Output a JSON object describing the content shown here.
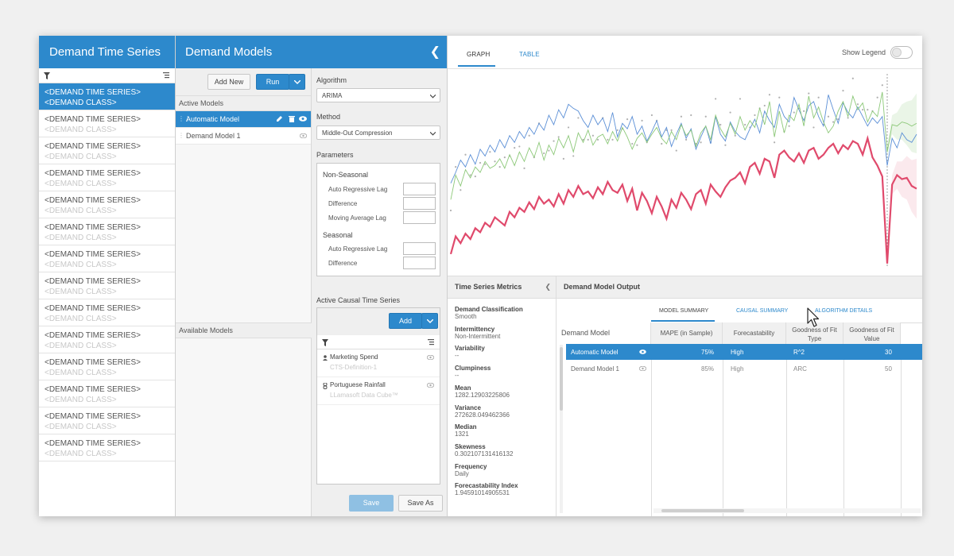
{
  "colors": {
    "accent": "#2d89cc",
    "series_red": "#e04a6c",
    "series_green": "#8cc878",
    "series_blue": "#5b8fd6",
    "dots": "#b0b0b0"
  },
  "time_series_panel": {
    "title": "Demand Time Series",
    "filter_icon": "filter-icon",
    "list_icon": "list-icon",
    "items": [
      {
        "name": "<DEMAND TIME SERIES>",
        "class": "<DEMAND CLASS>",
        "selected": true
      },
      {
        "name": "<DEMAND TIME SERIES>",
        "class": "<DEMAND CLASS>"
      },
      {
        "name": "<DEMAND TIME SERIES>",
        "class": "<DEMAND CLASS>"
      },
      {
        "name": "<DEMAND TIME SERIES>",
        "class": "<DEMAND CLASS>"
      },
      {
        "name": "<DEMAND TIME SERIES>",
        "class": "<DEMAND CLASS>"
      },
      {
        "name": "<DEMAND TIME SERIES>",
        "class": "<DEMAND CLASS>"
      },
      {
        "name": "<DEMAND TIME SERIES>",
        "class": "<DEMAND CLASS>"
      },
      {
        "name": "<DEMAND TIME SERIES>",
        "class": "<DEMAND CLASS>"
      },
      {
        "name": "<DEMAND TIME SERIES>",
        "class": "<DEMAND CLASS>"
      },
      {
        "name": "<DEMAND TIME SERIES>",
        "class": "<DEMAND CLASS>"
      },
      {
        "name": "<DEMAND TIME SERIES>",
        "class": "<DEMAND CLASS>"
      },
      {
        "name": "<DEMAND TIME SERIES>",
        "class": "<DEMAND CLASS>"
      },
      {
        "name": "<DEMAND TIME SERIES>",
        "class": "<DEMAND CLASS>"
      },
      {
        "name": "<DEMAND TIME SERIES>",
        "class": "<DEMAND CLASS>"
      }
    ]
  },
  "models_panel": {
    "title": "Demand Models",
    "add_new": "Add New",
    "run": "Run",
    "active_models_label": "Active Models",
    "active_models": [
      {
        "name": "Automatic Model",
        "selected": true
      },
      {
        "name": "Demand Model 1"
      }
    ],
    "available_models_label": "Available Models"
  },
  "parameters_panel": {
    "algorithm_label": "Algorithm",
    "algorithm_value": "ARIMA",
    "method_label": "Method",
    "method_value": "Middle-Out Compression",
    "parameters_label": "Parameters",
    "non_seasonal_label": "Non-Seasonal",
    "non_seasonal": [
      "Auto Regressive Lag",
      "Difference",
      "Moving Average Lag"
    ],
    "seasonal_label": "Seasonal",
    "seasonal": [
      "Auto Regressive Lag",
      "Difference"
    ],
    "causal_label": "Active Causal Time Series",
    "causal_add": "Add",
    "causal_items": [
      {
        "name": "Marketing Spend",
        "source": "CTS-Definition-1"
      },
      {
        "name": "Portuguese Rainfall",
        "source": "LLamasoft Data Cube™"
      }
    ],
    "save": "Save",
    "save_as": "Save As"
  },
  "graph_panel": {
    "tabs": [
      "GRAPH",
      "TABLE"
    ],
    "show_legend": "Show Legend"
  },
  "chart_data": {
    "type": "line",
    "x": [
      0,
      1,
      2,
      3,
      4,
      5,
      6,
      7,
      8,
      9,
      10,
      11,
      12,
      13,
      14,
      15,
      16,
      17,
      18,
      19,
      20,
      21,
      22,
      23,
      24,
      25,
      26,
      27,
      28,
      29,
      30,
      31,
      32,
      33,
      34,
      35,
      36,
      37,
      38,
      39,
      40,
      41,
      42,
      43,
      44,
      45,
      46,
      47,
      48,
      49,
      50,
      51,
      52,
      53,
      54,
      55,
      56,
      57,
      58,
      59,
      60,
      61,
      62,
      63,
      64,
      65,
      66,
      67,
      68,
      69,
      70,
      71,
      72,
      73,
      74,
      75,
      76,
      77,
      78,
      79,
      80,
      81,
      82,
      83,
      84,
      85,
      86,
      87,
      88,
      89,
      90,
      91,
      92,
      93,
      94,
      95
    ],
    "series": [
      {
        "values": [
          10,
          23,
          18,
          25,
          21,
          29,
          26,
          33,
          30,
          37,
          34,
          31,
          41,
          37,
          44,
          41,
          48,
          43,
          52,
          47,
          50,
          45,
          54,
          47,
          57,
          52,
          60,
          54,
          56,
          51,
          59,
          54,
          63,
          57,
          55,
          61,
          49,
          58,
          42,
          55,
          49,
          40,
          52,
          45,
          36,
          50,
          44,
          55,
          50,
          43,
          54,
          57,
          47,
          61,
          56,
          52,
          59,
          64,
          66,
          70,
          62,
          74,
          77,
          69,
          80,
          78,
          66,
          83,
          86,
          81,
          78,
          84,
          77,
          86,
          88,
          80,
          83,
          88,
          91,
          84,
          90,
          87,
          93,
          91,
          83,
          95,
          81,
          75,
          67,
          3,
          61,
          68,
          65,
          66,
          60,
          58
        ]
      },
      {
        "values": [
          50,
          68,
          60,
          72,
          66,
          74,
          70,
          78,
          73,
          75,
          80,
          73,
          83,
          75,
          85,
          78,
          88,
          81,
          92,
          79,
          90,
          83,
          95,
          88,
          97,
          85,
          99,
          92,
          101,
          90,
          96,
          98,
          91,
          100,
          93,
          103,
          96,
          87,
          95,
          99,
          92,
          98,
          103,
          95,
          91,
          100,
          94,
          105,
          97,
          101,
          89,
          99,
          104,
          94,
          112,
          102,
          96,
          106,
          98,
          111,
          101,
          108,
          103,
          117,
          105,
          122,
          96,
          115,
          99,
          112,
          108,
          120,
          104,
          126,
          110,
          118,
          107,
          99,
          104,
          115,
          122,
          111,
          126,
          116,
          121,
          107,
          115,
          111,
          129,
          85,
          105,
          104,
          107,
          106,
          104,
          106
        ]
      },
      {
        "values": [
          62,
          70,
          79,
          74,
          83,
          76,
          87,
          82,
          90,
          85,
          94,
          88,
          97,
          92,
          100,
          95,
          103,
          98,
          106,
          101,
          112,
          105,
          116,
          110,
          120,
          117,
          115,
          108,
          103,
          112,
          105,
          110,
          100,
          114,
          96,
          106,
          102,
          111,
          98,
          104,
          93,
          100,
          108,
          96,
          103,
          89,
          98,
          106,
          95,
          102,
          87,
          96,
          104,
          91,
          111,
          98,
          93,
          107,
          100,
          96,
          94,
          102,
          109,
          99,
          115,
          108,
          103,
          120,
          111,
          107,
          125,
          116,
          108,
          119,
          122,
          111,
          104,
          127,
          116,
          106,
          121,
          114,
          110,
          118,
          111,
          104,
          110,
          106,
          111,
          75,
          95,
          88,
          99,
          94,
          92,
          98
        ]
      }
    ],
    "grid": false,
    "legend": "hidden"
  },
  "output_panel": {
    "metrics_title": "Time Series Metrics",
    "metrics": [
      {
        "k": "Demand Classification",
        "v": "Smooth"
      },
      {
        "k": "Intermittency",
        "v": "Non-Intermittent"
      },
      {
        "k": "Variability",
        "v": "--"
      },
      {
        "k": "Clumpiness",
        "v": "--"
      },
      {
        "k": "Mean",
        "v": "1282.12903225806"
      },
      {
        "k": "Variance",
        "v": "272628.049462366"
      },
      {
        "k": "Median",
        "v": "1321"
      },
      {
        "k": "Skewness",
        "v": "0.302107131416132"
      },
      {
        "k": "Frequency",
        "v": "Daily"
      },
      {
        "k": "Forecastability Index",
        "v": "1.94591014905531"
      }
    ],
    "output_title": "Demand Model Output",
    "subtabs": [
      "MODEL SUMMARY",
      "CAUSAL SUMMARY",
      "ALGORITHM DETAILS"
    ],
    "model_col": "Demand Model",
    "columns": [
      "MAPE (in Sample)",
      "Forecastability",
      "Goodness of Fit Type",
      "Goodness of Fit Value"
    ],
    "rows": [
      {
        "model": "Automatic Model",
        "mape": "75%",
        "fc": "High",
        "type": "R^2",
        "value": "30",
        "selected": true
      },
      {
        "model": "Demand Model 1",
        "mape": "85%",
        "fc": "High",
        "type": "ARC",
        "value": "50"
      }
    ]
  }
}
